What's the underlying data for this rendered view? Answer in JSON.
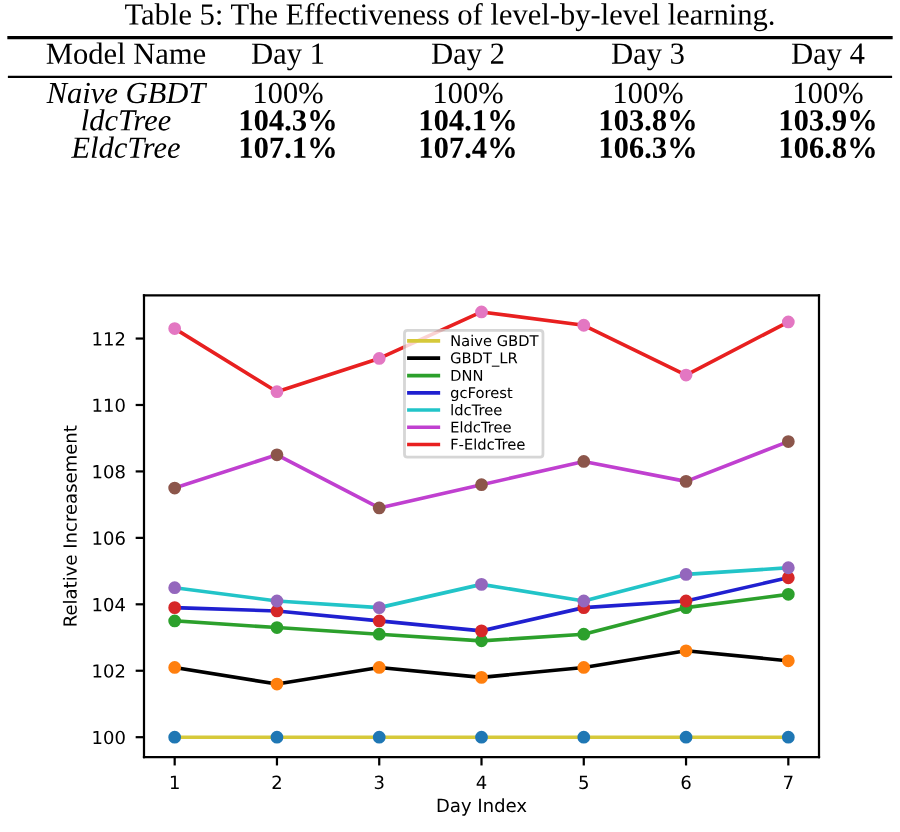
{
  "chart_data": [
    {
      "type": "other",
      "title": "Table 5: The Effectiveness of level-by-level learning.",
      "ylabel": "Model Name",
      "categories": [
        "Day 1",
        "Day 2",
        "Day 3",
        "Day 4"
      ],
      "y_categories": [
        "Naive GBDT",
        "ldcTree",
        "EldcTree"
      ],
      "cell_labels": [
        [
          "100%",
          "100%",
          "100%",
          "100%"
        ],
        [
          "104.3%",
          "104.1%",
          "103.8%",
          "103.9%"
        ],
        [
          "107.1%",
          "107.4%",
          "106.3%",
          "106.8%"
        ]
      ]
    },
    {
      "type": "line",
      "xlabel": "Day Index",
      "ylabel": "Relative Increasement",
      "x": [
        1,
        2,
        3,
        4,
        5,
        6,
        7
      ],
      "xlim": [
        0.7,
        7.3
      ],
      "xticks": [
        1,
        2,
        3,
        4,
        5,
        6,
        7
      ],
      "ylim": [
        99.4,
        113.3
      ],
      "yticks": [
        100,
        102,
        104,
        106,
        108,
        110,
        112
      ],
      "marker": "circle",
      "line_style": "solid",
      "grid": false,
      "legend": "top",
      "series": [
        {
          "name": "Naive GBDT",
          "color": "#d6c93a",
          "colors": [
            "#1f77b4",
            "#1f77b4",
            "#1f77b4",
            "#1f77b4",
            "#1f77b4",
            "#1f77b4",
            "#1f77b4"
          ],
          "values": [
            100,
            100,
            100,
            100,
            100,
            100,
            100
          ]
        },
        {
          "name": "GBDT_LR",
          "color": "#000000",
          "colors": [
            "#ff7f0e",
            "#ff7f0e",
            "#ff7f0e",
            "#ff7f0e",
            "#ff7f0e",
            "#ff7f0e",
            "#ff7f0e"
          ],
          "values": [
            102.1,
            101.6,
            102.1,
            101.8,
            102.1,
            102.6,
            102.3
          ]
        },
        {
          "name": "DNN",
          "color": "#2ca02c",
          "colors": [
            "#2ca02c",
            "#2ca02c",
            "#2ca02c",
            "#2ca02c",
            "#2ca02c",
            "#2ca02c",
            "#2ca02c"
          ],
          "values": [
            103.5,
            103.3,
            103.1,
            102.9,
            103.1,
            103.9,
            104.3
          ]
        },
        {
          "name": "gcForest",
          "color": "#2020d0",
          "colors": [
            "#d62728",
            "#d62728",
            "#d62728",
            "#d62728",
            "#d62728",
            "#d62728",
            "#d62728"
          ],
          "values": [
            103.9,
            103.8,
            103.5,
            103.2,
            103.9,
            104.1,
            104.8
          ]
        },
        {
          "name": "ldcTree",
          "color": "#22c4c8",
          "colors": [
            "#9467bd",
            "#9467bd",
            "#9467bd",
            "#9467bd",
            "#9467bd",
            "#9467bd",
            "#9467bd"
          ],
          "values": [
            104.5,
            104.1,
            103.9,
            104.6,
            104.1,
            104.9,
            105.1
          ]
        },
        {
          "name": "EldcTree",
          "color": "#c040d0",
          "colors": [
            "#8c564b",
            "#8c564b",
            "#8c564b",
            "#8c564b",
            "#8c564b",
            "#8c564b",
            "#8c564b"
          ],
          "values": [
            107.5,
            108.5,
            106.9,
            107.6,
            108.3,
            107.7,
            108.9
          ]
        },
        {
          "name": "F-EldcTree",
          "color": "#e82020",
          "colors": [
            "#e377c2",
            "#e377c2",
            "#e377c2",
            "#e377c2",
            "#e377c2",
            "#e377c2",
            "#e377c2"
          ],
          "values": [
            112.3,
            110.4,
            111.4,
            112.8,
            112.4,
            110.9,
            112.5
          ]
        }
      ]
    }
  ]
}
